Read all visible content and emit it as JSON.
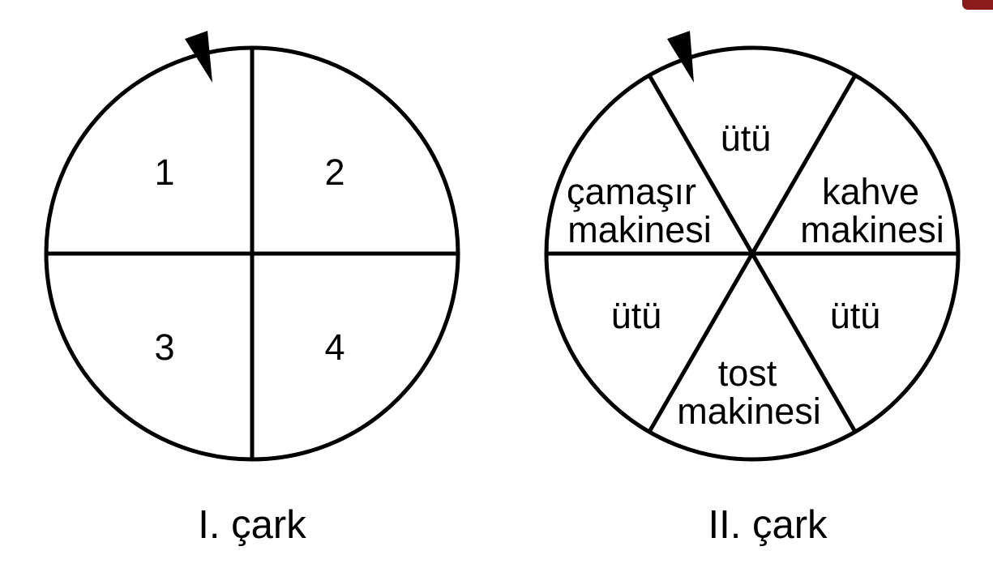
{
  "colors": {
    "background": "#ffffff",
    "stroke": "#000000",
    "corner_accent": "#8b1a1a"
  },
  "wheel1": {
    "caption": "I. çark",
    "segments": [
      {
        "label": "1"
      },
      {
        "label": "2"
      },
      {
        "label": "3"
      },
      {
        "label": "4"
      }
    ]
  },
  "wheel2": {
    "caption": "II. çark",
    "segments": [
      {
        "lines": [
          "ütü"
        ]
      },
      {
        "lines": [
          "kahve",
          "makinesi"
        ]
      },
      {
        "lines": [
          "ütü"
        ]
      },
      {
        "lines": [
          "tost",
          "makinesi"
        ]
      },
      {
        "lines": [
          "ütü"
        ]
      },
      {
        "lines": [
          "çamaşır",
          "makinesi"
        ]
      }
    ]
  },
  "icons": {
    "pointer": "pointer-arrow-icon"
  }
}
